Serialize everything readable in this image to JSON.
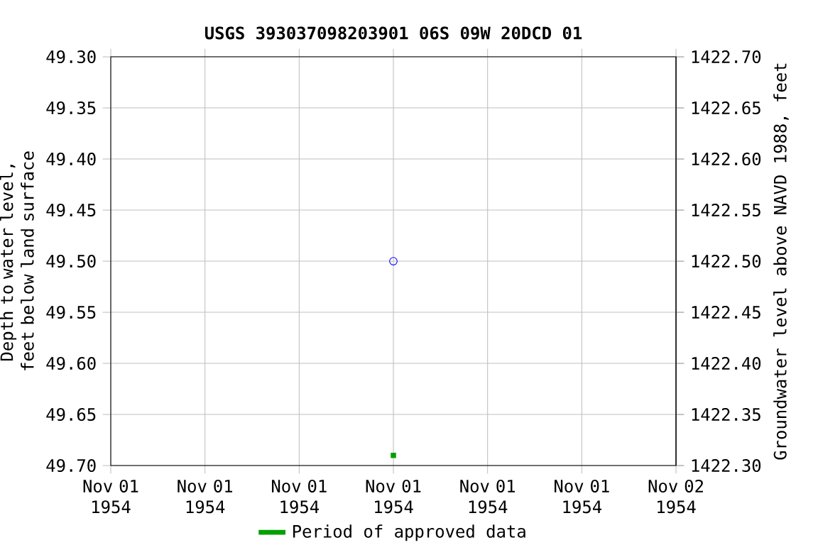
{
  "chart_data": {
    "type": "scatter",
    "title": "USGS 393037098203901 06S 09W 20DCD 01",
    "ylabel": "Depth to water level, feet below land surface",
    "y2label": "Groundwater level above NAVD 1988, feet",
    "series": [
      {
        "color": "#0000ff",
        "marker": "circle",
        "x": [
          "1954-11-01T12:00"
        ],
        "values": [
          49.5
        ]
      },
      {
        "name": "Period of approved data",
        "color": "#00a000",
        "marker": "square",
        "x": [
          "1954-11-01T12:00"
        ],
        "values": [
          49.69
        ]
      }
    ],
    "xlim": [
      "1954-11-01T00:00",
      "1954-11-02T00:00"
    ],
    "xticks": [
      {
        "value": "1954-11-01T00:00",
        "label": "Nov 01 1954"
      },
      {
        "value": "1954-11-01T04:00",
        "label": "Nov 01 1954"
      },
      {
        "value": "1954-11-01T08:00",
        "label": "Nov 01 1954"
      },
      {
        "value": "1954-11-01T12:00",
        "label": "Nov 01 1954"
      },
      {
        "value": "1954-11-01T16:00",
        "label": "Nov 01 1954"
      },
      {
        "value": "1954-11-01T20:00",
        "label": "Nov 01 1954"
      },
      {
        "value": "1954-11-02T00:00",
        "label": "Nov 02 1954"
      }
    ],
    "ylim": [
      49.7,
      49.3
    ],
    "yticks": [
      {
        "value": 49.3,
        "label": "49.30"
      },
      {
        "value": 49.35,
        "label": "49.35"
      },
      {
        "value": 49.4,
        "label": "49.40"
      },
      {
        "value": 49.45,
        "label": "49.45"
      },
      {
        "value": 49.5,
        "label": "49.50"
      },
      {
        "value": 49.55,
        "label": "49.55"
      },
      {
        "value": 49.6,
        "label": "49.60"
      },
      {
        "value": 49.65,
        "label": "49.65"
      },
      {
        "value": 49.7,
        "label": "49.70"
      }
    ],
    "y2lim": [
      1422.3,
      1422.7
    ],
    "y2ticks": [
      {
        "value": 1422.3,
        "label": "1422.30"
      },
      {
        "value": 1422.35,
        "label": "1422.35"
      },
      {
        "value": 1422.4,
        "label": "1422.40"
      },
      {
        "value": 1422.45,
        "label": "1422.45"
      },
      {
        "value": 1422.5,
        "label": "1422.50"
      },
      {
        "value": 1422.55,
        "label": "1422.55"
      },
      {
        "value": 1422.6,
        "label": "1422.60"
      },
      {
        "value": 1422.65,
        "label": "1422.65"
      },
      {
        "value": 1422.7,
        "label": "1422.70"
      }
    ],
    "grid": true,
    "legend": "bottom"
  }
}
